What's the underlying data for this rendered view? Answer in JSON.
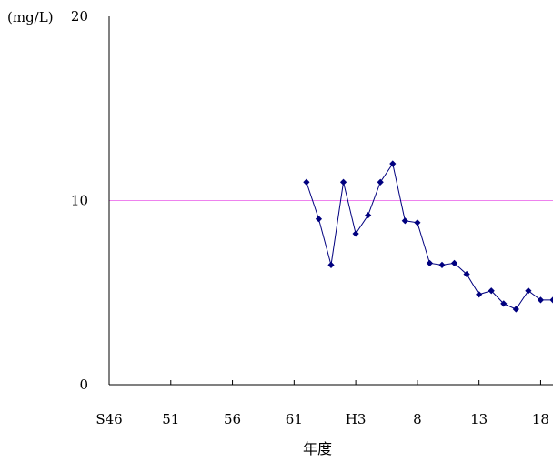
{
  "chart_data": {
    "type": "line",
    "unit_label": "(mg/L)",
    "xlabel": "年度",
    "ylabel": "",
    "ylim": [
      0,
      20
    ],
    "y_ticks": [
      "0",
      "10",
      "20"
    ],
    "x_ticks": [
      "S46",
      "51",
      "56",
      "61",
      "H3",
      "8",
      "13",
      "18"
    ],
    "x_tick_positions": [
      1971,
      1976,
      1981,
      1986,
      1991,
      1996,
      2001,
      2006
    ],
    "xlim": [
      1971,
      2007
    ],
    "reference_line": {
      "value": 10,
      "color": "#ee82ee"
    },
    "series": [
      {
        "color": "#00007f",
        "x": [
          1987,
          1988,
          1989,
          1990,
          1991,
          1992,
          1993,
          1994,
          1995,
          1996,
          1997,
          1998,
          1999,
          2000,
          2001,
          2002,
          2003,
          2004,
          2005,
          2006,
          2007
        ],
        "values": [
          11.0,
          9.0,
          6.5,
          11.0,
          8.2,
          9.2,
          11.0,
          12.0,
          8.9,
          8.8,
          6.6,
          6.5,
          6.6,
          6.0,
          4.9,
          5.1,
          4.4,
          4.1,
          5.1,
          4.6,
          4.6
        ]
      }
    ],
    "grid": false,
    "legend": "none"
  }
}
